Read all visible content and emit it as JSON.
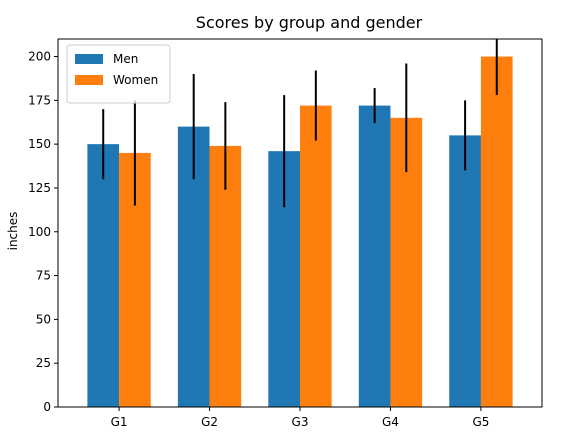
{
  "chart_data": {
    "type": "bar",
    "title": "Scores by group and gender",
    "xlabel": "",
    "ylabel": "inches",
    "categories": [
      "G1",
      "G2",
      "G3",
      "G4",
      "G5"
    ],
    "series": [
      {
        "name": "Men",
        "color": "#1f77b4",
        "values": [
          150,
          160,
          146,
          172,
          155
        ],
        "errors": [
          20,
          30,
          32,
          10,
          20
        ]
      },
      {
        "name": "Women",
        "color": "#ff7f0e",
        "values": [
          145,
          149,
          172,
          165,
          200
        ],
        "errors": [
          30,
          25,
          20,
          31,
          22
        ]
      }
    ],
    "ylim": [
      0,
      210
    ],
    "yticks": [
      0,
      25,
      50,
      75,
      100,
      125,
      150,
      175,
      200
    ],
    "legend": "top-left",
    "grid": false
  }
}
